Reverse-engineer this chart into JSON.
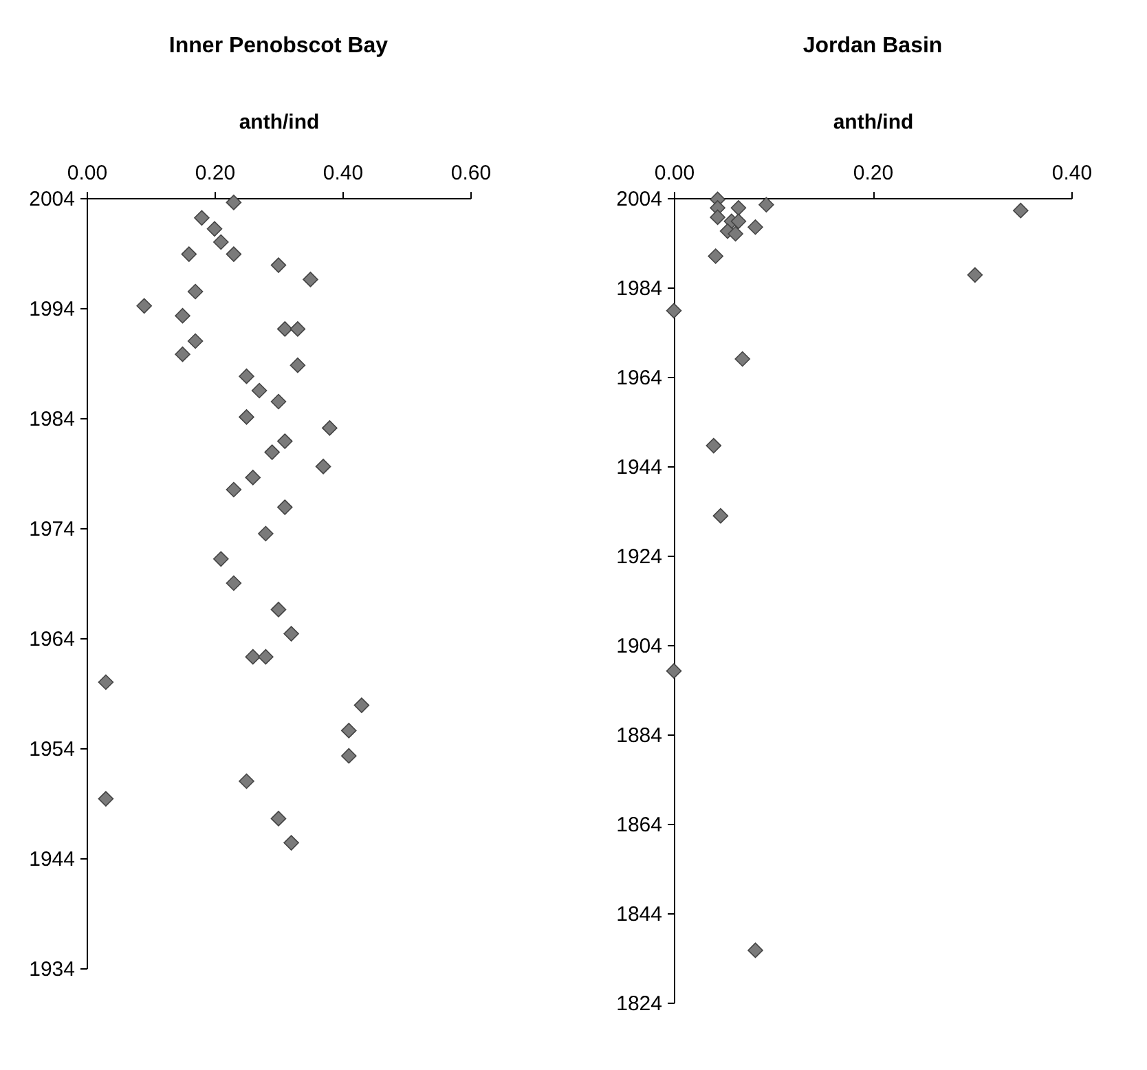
{
  "chart_data": [
    {
      "type": "scatter",
      "title": "Inner Penobscot Bay",
      "xlabel": "anth/ind",
      "marker": "diamond",
      "grid": false,
      "legend": false,
      "xlim": [
        0,
        0.6
      ],
      "xticks": [
        {
          "value": 0,
          "label": "0.00"
        },
        {
          "value": 0.2,
          "label": "0.20"
        },
        {
          "value": 0.4,
          "label": "0.40"
        },
        {
          "value": 0.6,
          "label": "0.60"
        }
      ],
      "ylim": [
        1934,
        2004
      ],
      "yticks": [
        1934,
        1944,
        1954,
        1964,
        1974,
        1984,
        1994,
        2004
      ],
      "series": [
        {
          "color": "#7a7a7a",
          "x": [
            0.23,
            0.18,
            0.2,
            0.21,
            0.23,
            0.16,
            0.3,
            0.35,
            0.17,
            0.09,
            0.15,
            0.31,
            0.33,
            0.17,
            0.15,
            0.33,
            0.25,
            0.27,
            0.3,
            0.25,
            0.38,
            0.29,
            0.31,
            0.37,
            0.26,
            0.23,
            0.31,
            0.28,
            0.21,
            0.23,
            0.3,
            0.32,
            0.26,
            0.28,
            0.03,
            0.43,
            0.41,
            0.41,
            0.25,
            0.03,
            0.3,
            0.32
          ],
          "values": [
            2003.6,
            2002.2,
            2001.2,
            2000,
            1998.9,
            1998.9,
            1997.9,
            1996.6,
            1995.5,
            1994.2,
            1993.3,
            1992.1,
            1992.1,
            1991,
            1989.8,
            1988.8,
            1987.8,
            1986.5,
            1985.5,
            1984.1,
            1983.1,
            1980.9,
            1981.9,
            1979.6,
            1978.6,
            1977.5,
            1975.9,
            1973.5,
            1971.2,
            1969,
            1966.6,
            1964.4,
            1962.3,
            1962.3,
            1960,
            1957.9,
            1955.6,
            1953.3,
            1951,
            1949.4,
            1947.6,
            1945.4
          ]
        }
      ]
    },
    {
      "type": "scatter",
      "title": "Jordan Basin",
      "xlabel": "anth/ind",
      "marker": "diamond",
      "grid": false,
      "legend": false,
      "xlim": [
        0,
        0.4
      ],
      "xticks": [
        {
          "value": 0,
          "label": "0.00"
        },
        {
          "value": 0.2,
          "label": "0.20"
        },
        {
          "value": 0.4,
          "label": "0.40"
        }
      ],
      "ylim": [
        1824,
        2004
      ],
      "yticks": [
        1824,
        1844,
        1864,
        1884,
        1904,
        1924,
        1944,
        1964,
        1984,
        2004
      ],
      "series": [
        {
          "color": "#7a7a7a",
          "x": [
            0.044,
            0.044,
            0.065,
            0.093,
            0.044,
            0.058,
            0.065,
            0.054,
            0.062,
            0.082,
            0.042,
            0.349,
            0.303,
            0,
            0.069,
            0.04,
            0.047,
            0,
            0.082
          ],
          "values": [
            2003.7,
            2001.8,
            2001.8,
            2002.5,
            1999.7,
            1998.8,
            1998.8,
            1996.6,
            1996,
            1997.5,
            1991,
            2001.2,
            1986.8,
            1978.8,
            1968,
            1948.6,
            1932.9,
            1898.2,
            1835.7
          ]
        }
      ]
    }
  ]
}
